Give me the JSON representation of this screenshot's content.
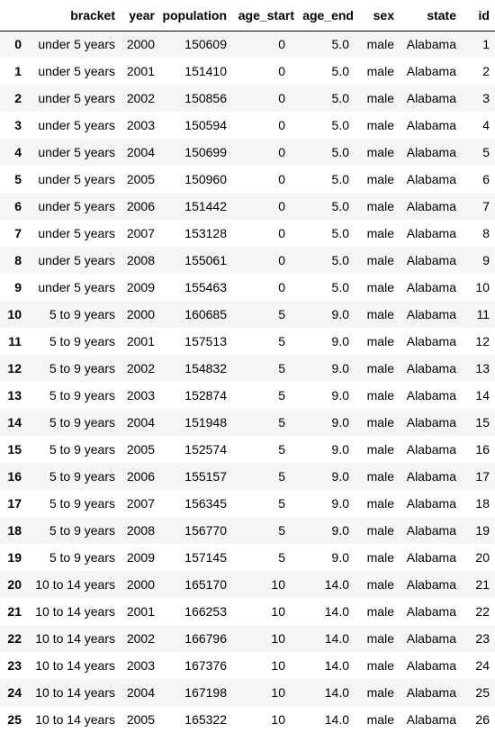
{
  "table": {
    "columns": [
      "",
      "bracket",
      "year",
      "population",
      "age_start",
      "age_end",
      "sex",
      "state",
      "id"
    ],
    "rows": [
      [
        "0",
        "under 5 years",
        "2000",
        "150609",
        "0",
        "5.0",
        "male",
        "Alabama",
        "1"
      ],
      [
        "1",
        "under 5 years",
        "2001",
        "151410",
        "0",
        "5.0",
        "male",
        "Alabama",
        "2"
      ],
      [
        "2",
        "under 5 years",
        "2002",
        "150856",
        "0",
        "5.0",
        "male",
        "Alabama",
        "3"
      ],
      [
        "3",
        "under 5 years",
        "2003",
        "150594",
        "0",
        "5.0",
        "male",
        "Alabama",
        "4"
      ],
      [
        "4",
        "under 5 years",
        "2004",
        "150699",
        "0",
        "5.0",
        "male",
        "Alabama",
        "5"
      ],
      [
        "5",
        "under 5 years",
        "2005",
        "150960",
        "0",
        "5.0",
        "male",
        "Alabama",
        "6"
      ],
      [
        "6",
        "under 5 years",
        "2006",
        "151442",
        "0",
        "5.0",
        "male",
        "Alabama",
        "7"
      ],
      [
        "7",
        "under 5 years",
        "2007",
        "153128",
        "0",
        "5.0",
        "male",
        "Alabama",
        "8"
      ],
      [
        "8",
        "under 5 years",
        "2008",
        "155061",
        "0",
        "5.0",
        "male",
        "Alabama",
        "9"
      ],
      [
        "9",
        "under 5 years",
        "2009",
        "155463",
        "0",
        "5.0",
        "male",
        "Alabama",
        "10"
      ],
      [
        "10",
        "5 to 9 years",
        "2000",
        "160685",
        "5",
        "9.0",
        "male",
        "Alabama",
        "11"
      ],
      [
        "11",
        "5 to 9 years",
        "2001",
        "157513",
        "5",
        "9.0",
        "male",
        "Alabama",
        "12"
      ],
      [
        "12",
        "5 to 9 years",
        "2002",
        "154832",
        "5",
        "9.0",
        "male",
        "Alabama",
        "13"
      ],
      [
        "13",
        "5 to 9 years",
        "2003",
        "152874",
        "5",
        "9.0",
        "male",
        "Alabama",
        "14"
      ],
      [
        "14",
        "5 to 9 years",
        "2004",
        "151948",
        "5",
        "9.0",
        "male",
        "Alabama",
        "15"
      ],
      [
        "15",
        "5 to 9 years",
        "2005",
        "152574",
        "5",
        "9.0",
        "male",
        "Alabama",
        "16"
      ],
      [
        "16",
        "5 to 9 years",
        "2006",
        "155157",
        "5",
        "9.0",
        "male",
        "Alabama",
        "17"
      ],
      [
        "17",
        "5 to 9 years",
        "2007",
        "156345",
        "5",
        "9.0",
        "male",
        "Alabama",
        "18"
      ],
      [
        "18",
        "5 to 9 years",
        "2008",
        "156770",
        "5",
        "9.0",
        "male",
        "Alabama",
        "19"
      ],
      [
        "19",
        "5 to 9 years",
        "2009",
        "157145",
        "5",
        "9.0",
        "male",
        "Alabama",
        "20"
      ],
      [
        "20",
        "10 to 14 years",
        "2000",
        "165170",
        "10",
        "14.0",
        "male",
        "Alabama",
        "21"
      ],
      [
        "21",
        "10 to 14 years",
        "2001",
        "166253",
        "10",
        "14.0",
        "male",
        "Alabama",
        "22"
      ],
      [
        "22",
        "10 to 14 years",
        "2002",
        "166796",
        "10",
        "14.0",
        "male",
        "Alabama",
        "23"
      ],
      [
        "23",
        "10 to 14 years",
        "2003",
        "167376",
        "10",
        "14.0",
        "male",
        "Alabama",
        "24"
      ],
      [
        "24",
        "10 to 14 years",
        "2004",
        "167198",
        "10",
        "14.0",
        "male",
        "Alabama",
        "25"
      ],
      [
        "25",
        "10 to 14 years",
        "2005",
        "165322",
        "10",
        "14.0",
        "male",
        "Alabama",
        "26"
      ]
    ]
  }
}
